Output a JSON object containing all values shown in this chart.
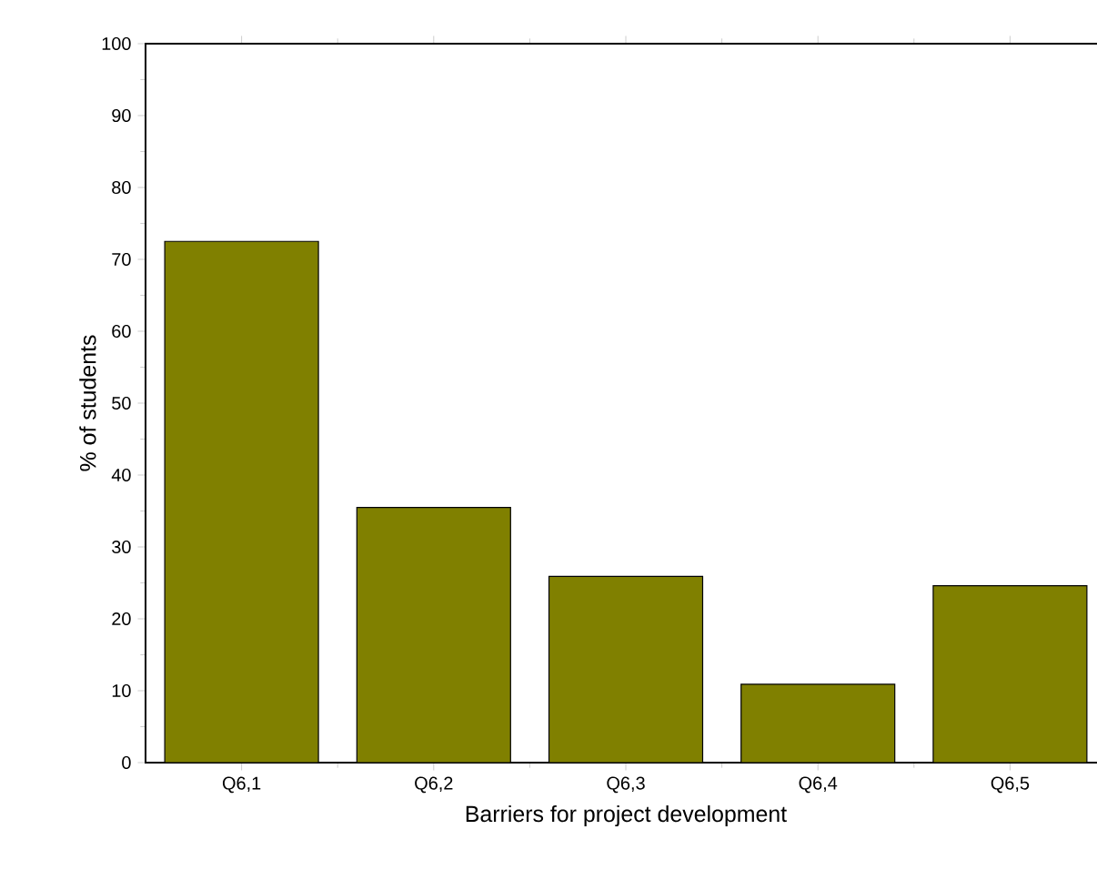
{
  "chart_data": {
    "type": "bar",
    "xlabel": "Barriers for project development",
    "ylabel": "% of students",
    "categories": [
      "Q6,1",
      "Q6,2",
      "Q6,3",
      "Q6,4",
      "Q6,5"
    ],
    "values": [
      72.5,
      35.5,
      25.9,
      10.9,
      24.6
    ],
    "color": "#808000",
    "ylim": [
      0,
      100
    ],
    "yticks": [
      0,
      10,
      20,
      30,
      40,
      50,
      60,
      70,
      80,
      90,
      100
    ],
    "grid": false
  }
}
